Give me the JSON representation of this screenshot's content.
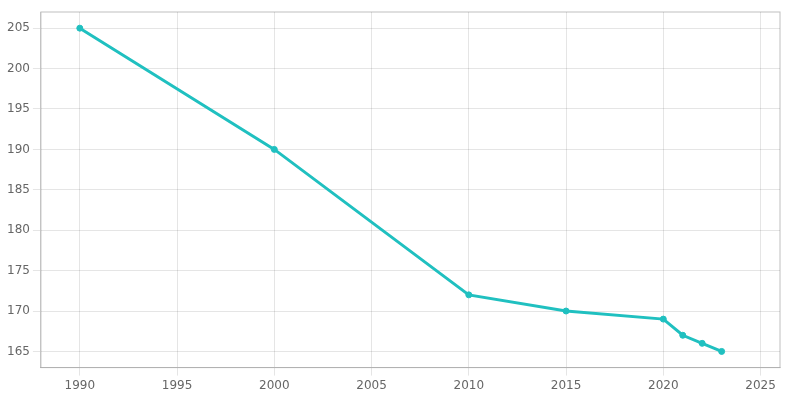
{
  "chart_data": {
    "type": "line",
    "x": [
      1990,
      2000,
      2010,
      2015,
      2020,
      2021,
      2022,
      2023
    ],
    "values": [
      205,
      190,
      172,
      170,
      169,
      167,
      166,
      165
    ],
    "color": "#20c0c0",
    "marker": "circle",
    "xlim": [
      1988,
      2026
    ],
    "ylim": [
      163,
      207
    ],
    "xticks": [
      1990,
      1995,
      2000,
      2005,
      2010,
      2015,
      2020,
      2025
    ],
    "yticks": [
      165,
      170,
      175,
      180,
      185,
      190,
      195,
      200,
      205
    ],
    "grid": true
  }
}
